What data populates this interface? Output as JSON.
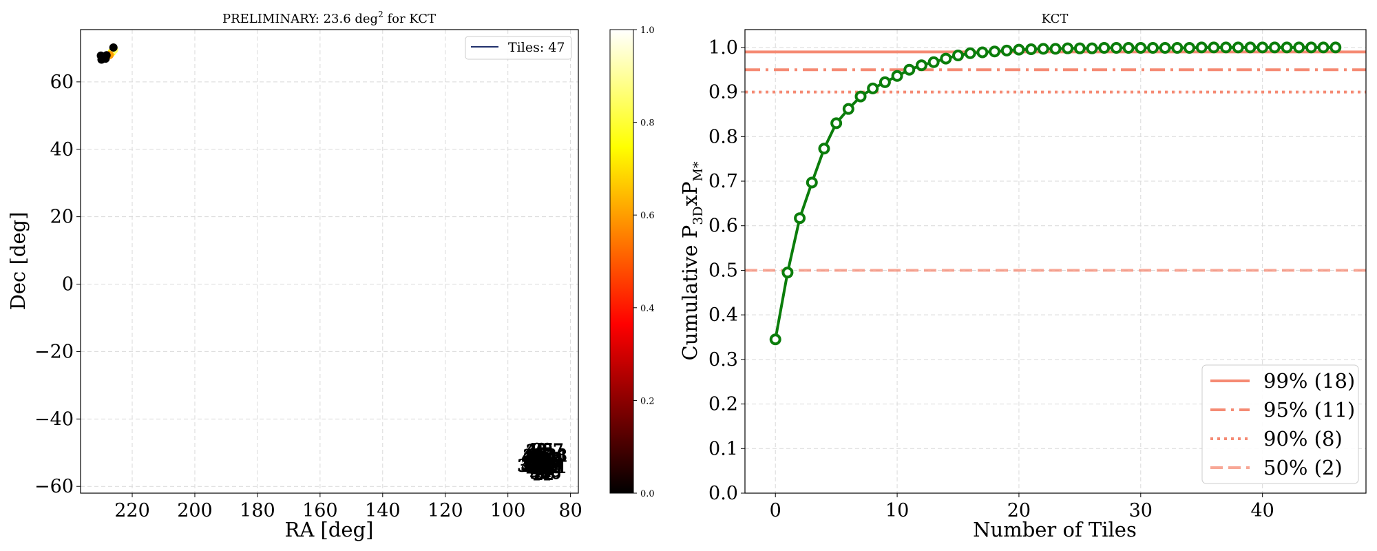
{
  "chart_data": [
    {
      "type": "scatter",
      "title": "PRELIMINARY: 23.6 deg",
      "title_sup": "2",
      "title_suffix": " for KCT",
      "xlabel": "RA [deg]",
      "ylabel": "Dec [deg]",
      "xlim": [
        236.5,
        77.5
      ],
      "ylim": [
        -62,
        75.5
      ],
      "x_inverted": true,
      "xticks": [
        220,
        200,
        180,
        160,
        140,
        120,
        100,
        80
      ],
      "yticks": [
        -60,
        -40,
        -20,
        0,
        20,
        40,
        60
      ],
      "grid": true,
      "legend_position": "top-right",
      "legend": [
        {
          "label": "Tiles: 47",
          "color": "#1f2f6b"
        }
      ],
      "colormap": "hot",
      "colorbar": {
        "min": 0.0,
        "max": 1.0,
        "ticks": [
          "0.0",
          "0.2",
          "0.4",
          "0.6",
          "0.8",
          "1.0"
        ]
      },
      "points_prob": [
        {
          "ra": 226.5,
          "dec": 68.8,
          "value": 0.75
        },
        {
          "ra": 225.8,
          "dec": 69.5,
          "value": 0.85
        },
        {
          "ra": 227.2,
          "dec": 68.0,
          "value": 0.6
        }
      ],
      "points_dark": [
        {
          "ra": 229.2,
          "dec": 67.3
        },
        {
          "ra": 230.0,
          "dec": 67.8
        },
        {
          "ra": 228.5,
          "dec": 66.9
        },
        {
          "ra": 229.8,
          "dec": 66.6
        },
        {
          "ra": 228.2,
          "dec": 67.9
        },
        {
          "ra": 226.0,
          "dec": 70.2
        }
      ],
      "cluster_center": {
        "ra": 89,
        "dec": -52.5
      }
    },
    {
      "type": "line",
      "title": "KCT",
      "xlabel": "Number of Tiles",
      "ylabel": "Cumulative P",
      "ylabel_sub1": "3D",
      "ylabel_mid": "xP",
      "ylabel_sub2": "M*",
      "xlim": [
        -2.5,
        48.5
      ],
      "ylim": [
        0.0,
        1.04
      ],
      "xticks": [
        0,
        10,
        20,
        30,
        40
      ],
      "yticks": [
        "0.0",
        "0.1",
        "0.2",
        "0.3",
        "0.4",
        "0.5",
        "0.6",
        "0.7",
        "0.8",
        "0.9",
        "1.0"
      ],
      "grid": true,
      "legend_position": "bottom-right",
      "series": [
        {
          "color": "#0b7d0b",
          "x": [
            0,
            1,
            2,
            3,
            4,
            5,
            6,
            7,
            8,
            9,
            10,
            11,
            12,
            13,
            14,
            15,
            16,
            17,
            18,
            19,
            20,
            21,
            22,
            23,
            24,
            25,
            26,
            27,
            28,
            29,
            30,
            31,
            32,
            33,
            34,
            35,
            36,
            37,
            38,
            39,
            40,
            41,
            42,
            43,
            44,
            45,
            46
          ],
          "values": [
            0.345,
            0.495,
            0.617,
            0.697,
            0.773,
            0.83,
            0.862,
            0.89,
            0.908,
            0.922,
            0.936,
            0.95,
            0.96,
            0.967,
            0.975,
            0.982,
            0.987,
            0.989,
            0.991,
            0.993,
            0.995,
            0.996,
            0.997,
            0.997,
            0.998,
            0.998,
            0.998,
            0.999,
            0.999,
            0.999,
            0.999,
            0.999,
            0.999,
            0.999,
            0.999,
            1.0,
            1.0,
            1.0,
            1.0,
            1.0,
            1.0,
            1.0,
            1.0,
            1.0,
            1.0,
            1.0,
            1.0
          ]
        }
      ],
      "thresholds": [
        {
          "label": "99% (18)",
          "value": 0.99,
          "style": "solid",
          "color": "#f58a73",
          "opacity": 1.0
        },
        {
          "label": "95% (11)",
          "value": 0.95,
          "style": "dashdot",
          "color": "#f58a73",
          "opacity": 1.0
        },
        {
          "label": "90% (8)",
          "value": 0.9,
          "style": "dotted",
          "color": "#f58a73",
          "opacity": 1.0
        },
        {
          "label": "50% (2)",
          "value": 0.5,
          "style": "dashed",
          "color": "#f58a73",
          "opacity": 0.75
        }
      ]
    }
  ]
}
